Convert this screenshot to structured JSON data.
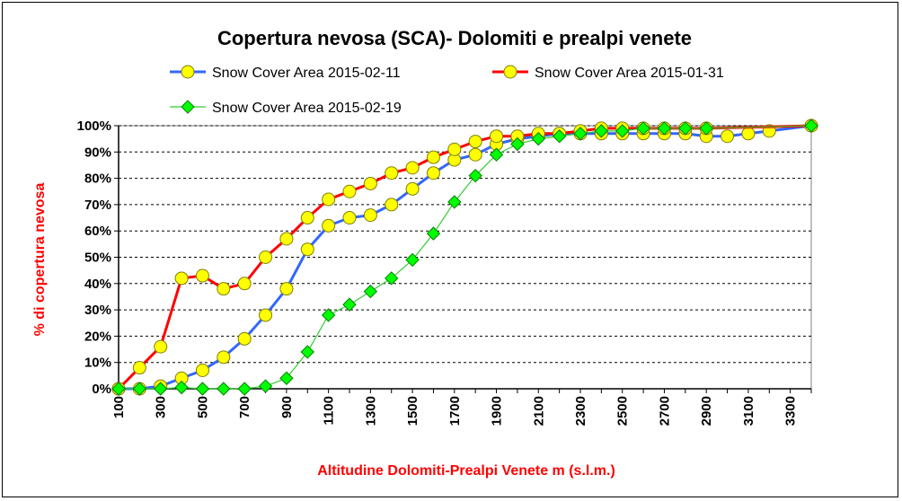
{
  "chart_data": {
    "type": "line",
    "title": "Copertura nevosa (SCA)- Dolomiti e prealpi venete",
    "xlabel": "Altitudine Dolomiti-Prealpi Venete m (s.l.m.)",
    "ylabel": "% di copertura nevosa",
    "xlim": [
      100,
      3400
    ],
    "ylim": [
      0,
      100
    ],
    "x_tick_labels": [
      "100",
      "300",
      "500",
      "700",
      "900",
      "1100",
      "1300",
      "1500",
      "1700",
      "1900",
      "2100",
      "2300",
      "2500",
      "2700",
      "2900",
      "3100",
      "3300"
    ],
    "y_tick_labels": [
      "0%",
      "10%",
      "20%",
      "30%",
      "40%",
      "50%",
      "60%",
      "70%",
      "80%",
      "90%",
      "100%"
    ],
    "grid": true,
    "legend_position": "top",
    "series": [
      {
        "name": "Snow Cover Area 2015-02-11",
        "line_color": "#3366ff",
        "marker": "circle",
        "marker_fill": "#ffff00",
        "marker_stroke": "#808000",
        "x": [
          100,
          200,
          300,
          400,
          500,
          600,
          700,
          800,
          900,
          1000,
          1100,
          1200,
          1300,
          1400,
          1500,
          1600,
          1700,
          1800,
          1900,
          2000,
          2100,
          2200,
          2300,
          2400,
          2500,
          2600,
          2700,
          2800,
          2900,
          3000,
          3100,
          3200,
          3400
        ],
        "y": [
          0,
          0,
          1,
          4,
          7,
          12,
          19,
          28,
          38,
          53,
          62,
          65,
          66,
          70,
          76,
          82,
          87,
          89,
          93,
          95,
          96,
          97,
          97,
          97,
          97,
          97,
          97,
          97,
          96,
          96,
          97,
          98,
          100
        ]
      },
      {
        "name": "Snow Cover Area 2015-01-31",
        "line_color": "#ff0000",
        "marker": "circle",
        "marker_fill": "#ffff00",
        "marker_stroke": "#808000",
        "x": [
          100,
          200,
          300,
          400,
          500,
          600,
          700,
          800,
          900,
          1000,
          1100,
          1200,
          1300,
          1400,
          1500,
          1600,
          1700,
          1800,
          1900,
          2000,
          2100,
          2200,
          2300,
          2400,
          2500,
          2600,
          2700,
          2800,
          2900,
          3400
        ],
        "y": [
          0,
          8,
          16,
          42,
          43,
          38,
          40,
          50,
          57,
          65,
          72,
          75,
          78,
          82,
          84,
          88,
          91,
          94,
          96,
          96,
          97,
          97,
          98,
          99,
          99,
          99,
          99,
          99,
          99,
          100
        ]
      },
      {
        "name": "Snow Cover Area 2015-02-19",
        "line_color": "#33cc33",
        "marker": "diamond",
        "marker_fill": "#00ff00",
        "marker_stroke": "#008000",
        "x": [
          100,
          200,
          300,
          400,
          500,
          600,
          700,
          800,
          900,
          1000,
          1100,
          1200,
          1300,
          1400,
          1500,
          1600,
          1700,
          1800,
          1900,
          2000,
          2100,
          2200,
          2300,
          2400,
          2500,
          2600,
          2700,
          2800,
          2900,
          3400
        ],
        "y": [
          0,
          0,
          0,
          0.5,
          0,
          0,
          0,
          1,
          4,
          14,
          28,
          32,
          37,
          42,
          49,
          59,
          71,
          81,
          89,
          93,
          95,
          96,
          97,
          98,
          98,
          99,
          99,
          99,
          99,
          100
        ]
      }
    ]
  }
}
